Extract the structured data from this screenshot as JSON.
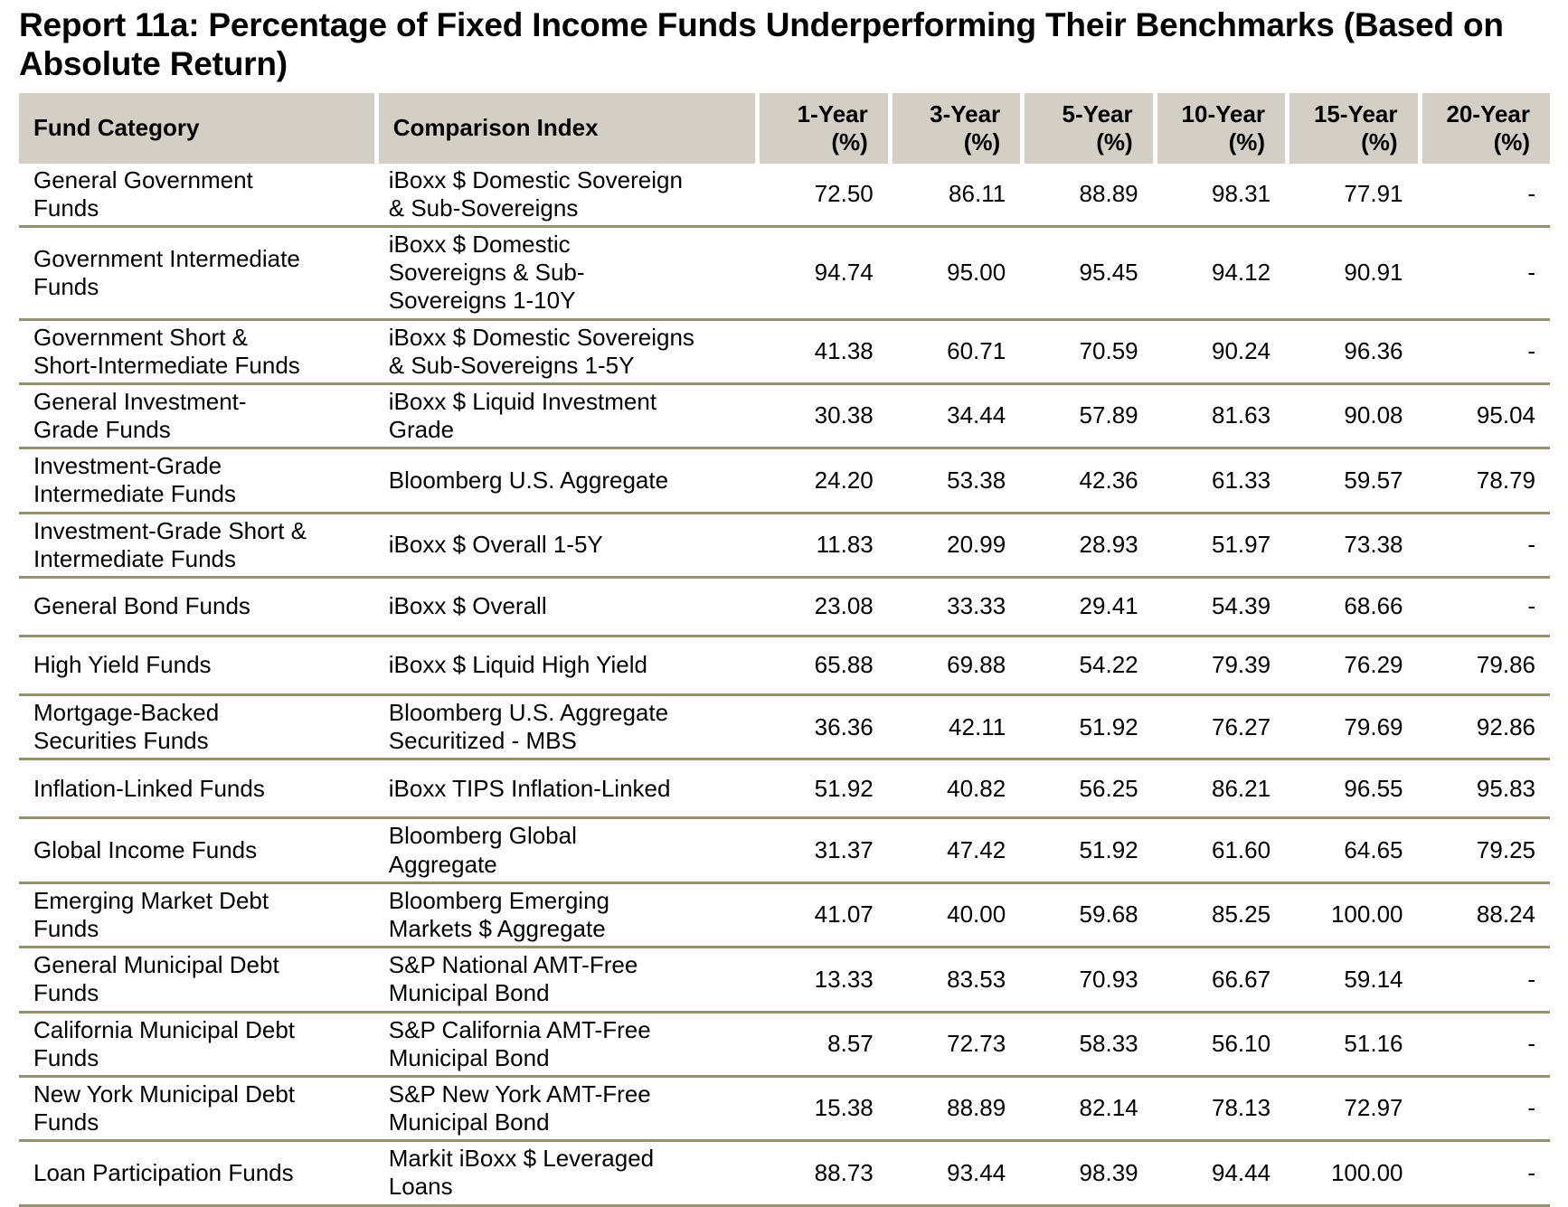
{
  "title": "Report 11a: Percentage of Fixed Income Funds Underperforming Their Benchmarks (Based on Absolute Return)",
  "colors": {
    "header_background": "#d4cfc4",
    "row_separator_line": "#95906f",
    "text": "#000000"
  },
  "table": {
    "headers": {
      "fund_category": "Fund Category",
      "comparison_index": "Comparison Index",
      "periods": [
        {
          "label": "1-Year",
          "unit": "(%)"
        },
        {
          "label": "3-Year",
          "unit": "(%)"
        },
        {
          "label": "5-Year",
          "unit": "(%)"
        },
        {
          "label": "10-Year",
          "unit": "(%)"
        },
        {
          "label": "15-Year",
          "unit": "(%)"
        },
        {
          "label": "20-Year",
          "unit": "(%)"
        }
      ]
    },
    "rows": [
      {
        "fund_category": "General Government\nFunds",
        "comparison_index": "iBoxx $ Domestic Sovereign\n& Sub-Sovereigns",
        "values": [
          "72.50",
          "86.11",
          "88.89",
          "98.31",
          "77.91",
          "-"
        ]
      },
      {
        "fund_category": "Government Intermediate\nFunds",
        "comparison_index": "iBoxx $ Domestic\nSovereigns & Sub-\nSovereigns 1-10Y",
        "values": [
          "94.74",
          "95.00",
          "95.45",
          "94.12",
          "90.91",
          "-"
        ]
      },
      {
        "fund_category": "Government Short &\nShort-Intermediate Funds",
        "comparison_index": "iBoxx $ Domestic Sovereigns\n& Sub-Sovereigns 1-5Y",
        "values": [
          "41.38",
          "60.71",
          "70.59",
          "90.24",
          "96.36",
          "-"
        ]
      },
      {
        "fund_category": "General Investment-\nGrade Funds",
        "comparison_index": "iBoxx $ Liquid Investment\nGrade",
        "values": [
          "30.38",
          "34.44",
          "57.89",
          "81.63",
          "90.08",
          "95.04"
        ]
      },
      {
        "fund_category": "Investment-Grade\nIntermediate Funds",
        "comparison_index": "Bloomberg U.S. Aggregate",
        "values": [
          "24.20",
          "53.38",
          "42.36",
          "61.33",
          "59.57",
          "78.79"
        ]
      },
      {
        "fund_category": "Investment-Grade Short &\nIntermediate Funds",
        "comparison_index": "iBoxx $ Overall 1-5Y",
        "values": [
          "11.83",
          "20.99",
          "28.93",
          "51.97",
          "73.38",
          "-"
        ]
      },
      {
        "fund_category": "General Bond Funds",
        "comparison_index": "iBoxx $ Overall",
        "values": [
          "23.08",
          "33.33",
          "29.41",
          "54.39",
          "68.66",
          "-"
        ]
      },
      {
        "fund_category": "High Yield Funds",
        "comparison_index": "iBoxx $ Liquid High Yield",
        "values": [
          "65.88",
          "69.88",
          "54.22",
          "79.39",
          "76.29",
          "79.86"
        ]
      },
      {
        "fund_category": "Mortgage-Backed\nSecurities Funds",
        "comparison_index": "Bloomberg U.S. Aggregate\nSecuritized - MBS",
        "values": [
          "36.36",
          "42.11",
          "51.92",
          "76.27",
          "79.69",
          "92.86"
        ]
      },
      {
        "fund_category": "Inflation-Linked Funds",
        "comparison_index": "iBoxx TIPS Inflation-Linked",
        "values": [
          "51.92",
          "40.82",
          "56.25",
          "86.21",
          "96.55",
          "95.83"
        ]
      },
      {
        "fund_category": "Global Income Funds",
        "comparison_index": "Bloomberg Global\nAggregate",
        "values": [
          "31.37",
          "47.42",
          "51.92",
          "61.60",
          "64.65",
          "79.25"
        ]
      },
      {
        "fund_category": "Emerging Market Debt\nFunds",
        "comparison_index": "Bloomberg Emerging\nMarkets $ Aggregate",
        "values": [
          "41.07",
          "40.00",
          "59.68",
          "85.25",
          "100.00",
          "88.24"
        ]
      },
      {
        "fund_category": "General Municipal Debt\nFunds",
        "comparison_index": "S&P National AMT-Free\nMunicipal Bond",
        "values": [
          "13.33",
          "83.53",
          "70.93",
          "66.67",
          "59.14",
          "-"
        ]
      },
      {
        "fund_category": "California Municipal Debt\nFunds",
        "comparison_index": "S&P California AMT-Free\nMunicipal Bond",
        "values": [
          "8.57",
          "72.73",
          "58.33",
          "56.10",
          "51.16",
          "-"
        ]
      },
      {
        "fund_category": "New York Municipal Debt\nFunds",
        "comparison_index": "S&P New York AMT-Free\nMunicipal Bond",
        "values": [
          "15.38",
          "88.89",
          "82.14",
          "78.13",
          "72.97",
          "-"
        ]
      },
      {
        "fund_category": "Loan Participation Funds",
        "comparison_index": "Markit iBoxx $ Leveraged\nLoans",
        "values": [
          "88.73",
          "93.44",
          "98.39",
          "94.44",
          "100.00",
          "-"
        ]
      }
    ]
  }
}
